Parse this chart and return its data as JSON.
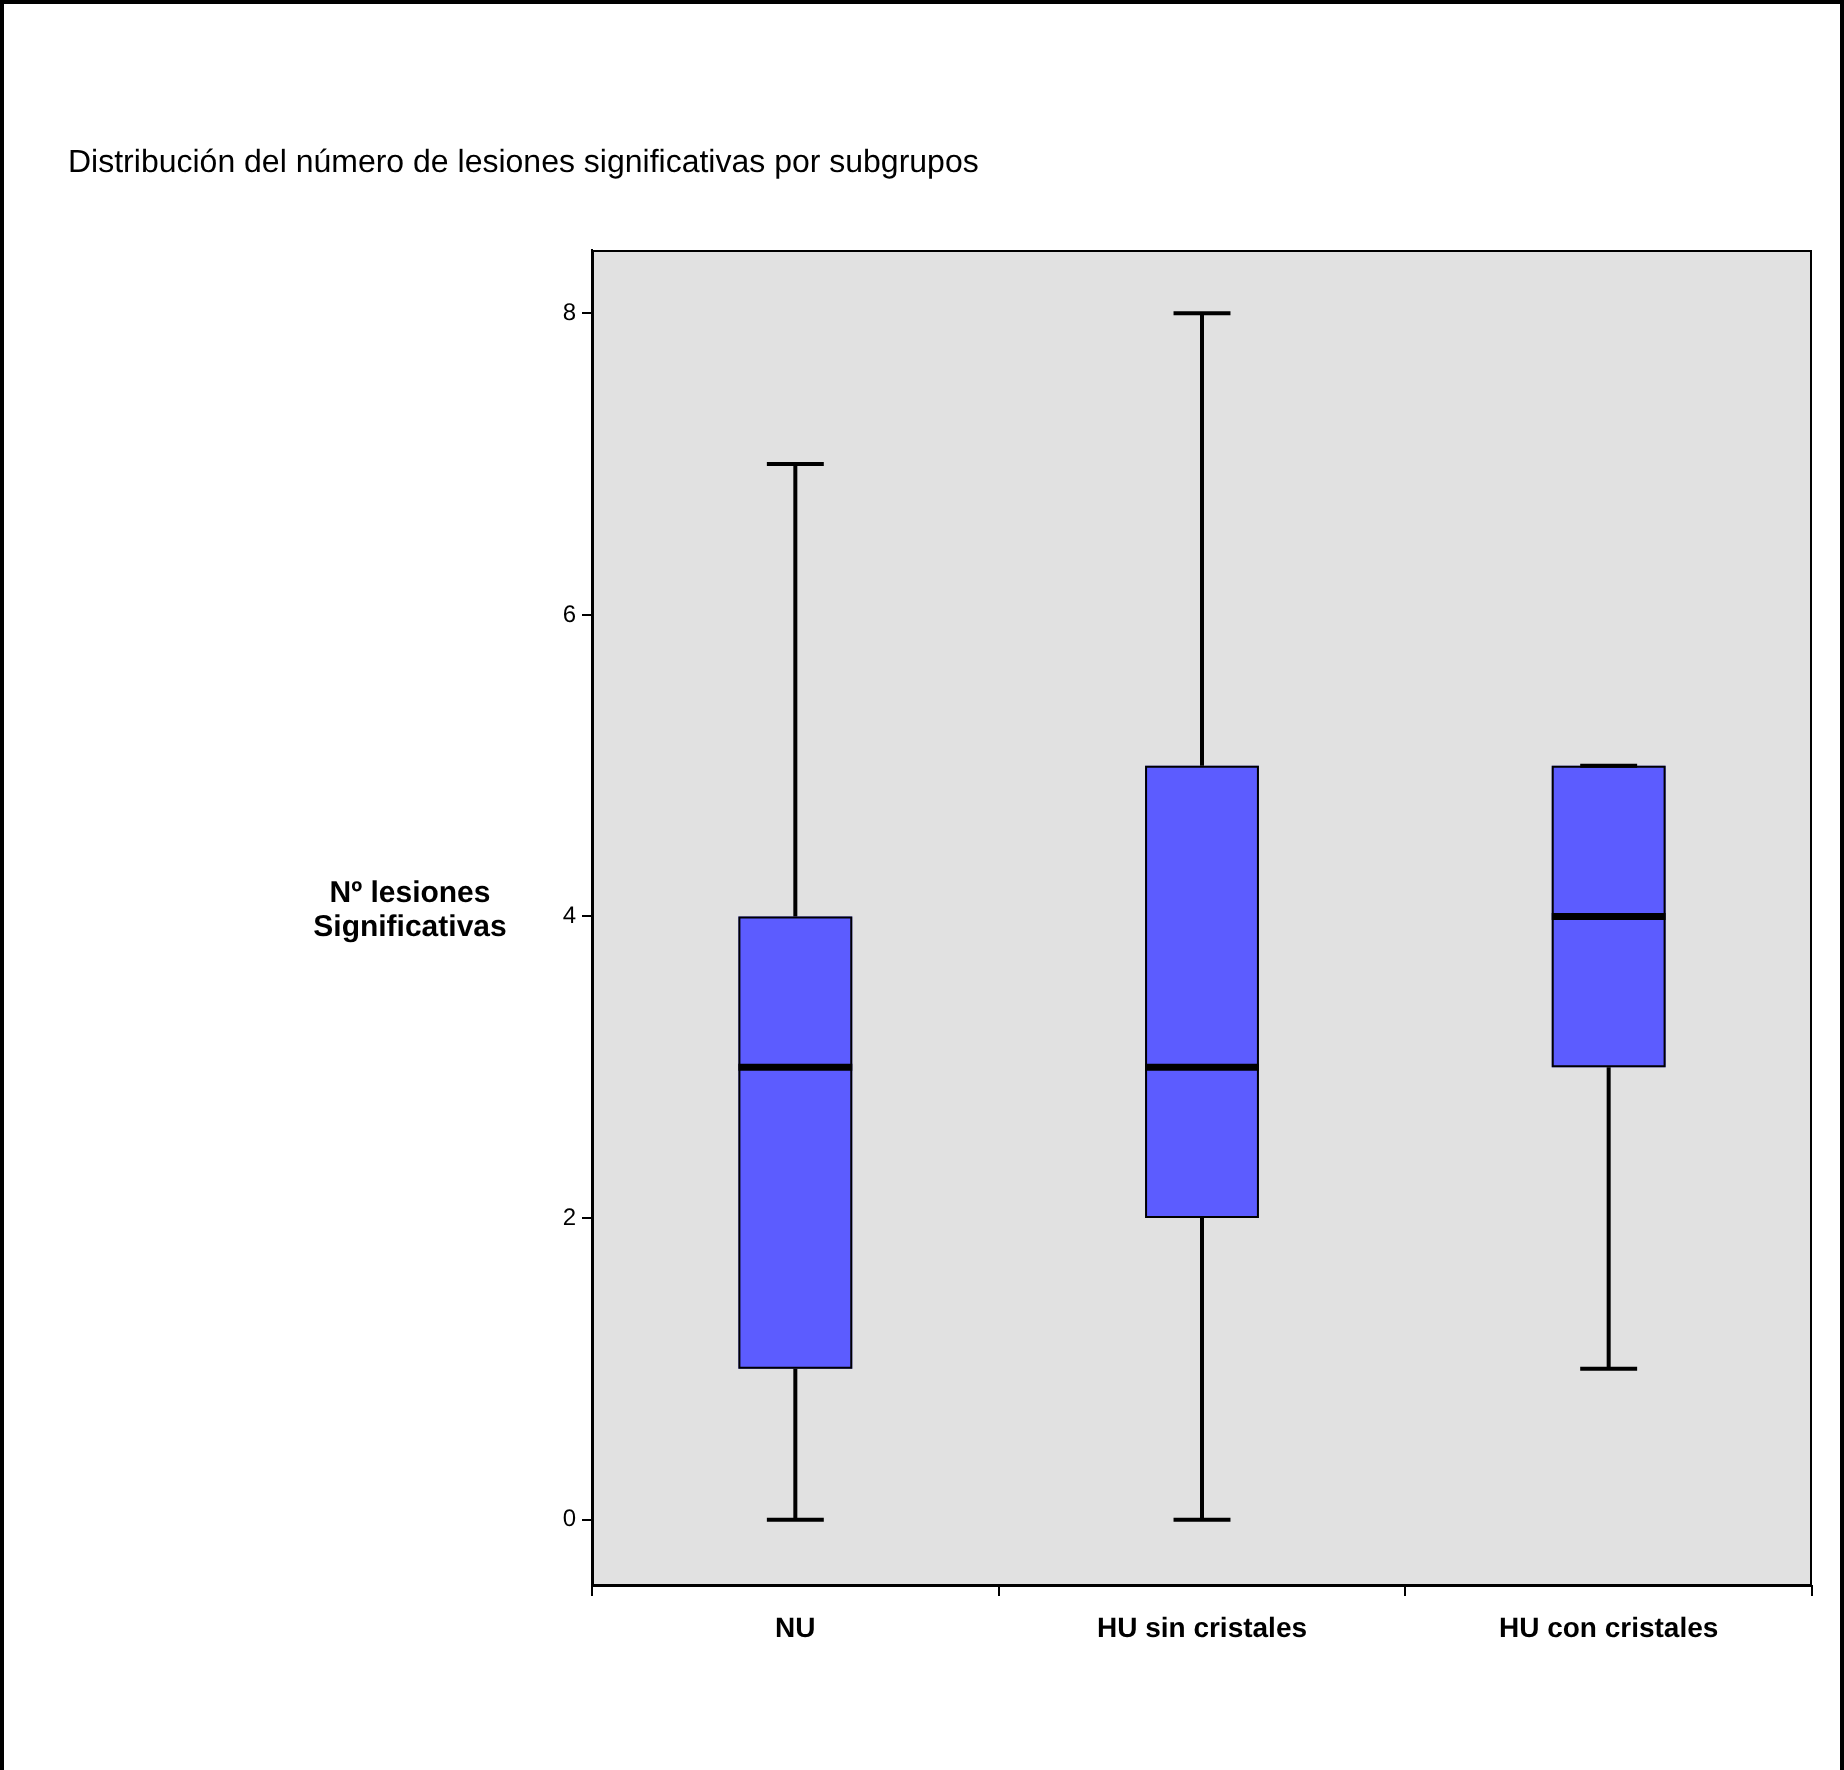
{
  "chart_data": {
    "type": "box",
    "title": "Distribución del número de lesiones significativas por subgrupos",
    "ylabel": "Nº lesiones Significativas",
    "categories": [
      "NU",
      "HU sin cristales",
      "HU con cristales"
    ],
    "boxes": [
      {
        "low": 0,
        "q1": 1,
        "median": 3,
        "q3": 4,
        "high": 7
      },
      {
        "low": 0,
        "q1": 2,
        "median": 3,
        "q3": 5,
        "high": 8
      },
      {
        "low": 1,
        "q1": 3,
        "median": 4,
        "q3": 5,
        "high": 5
      }
    ],
    "color": "#5c5cff",
    "ylim": [
      -0.44,
      8.42
    ],
    "yticks": [
      0,
      2,
      4,
      6,
      8
    ],
    "grid": false,
    "legend": false
  }
}
